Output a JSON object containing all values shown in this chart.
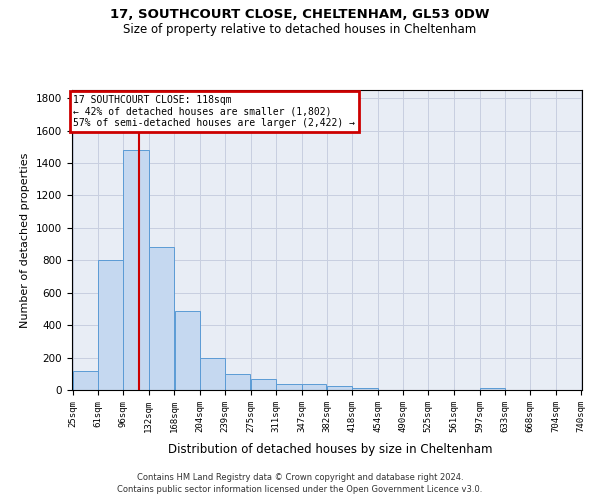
{
  "title1": "17, SOUTHCOURT CLOSE, CHELTENHAM, GL53 0DW",
  "title2": "Size of property relative to detached houses in Cheltenham",
  "xlabel": "Distribution of detached houses by size in Cheltenham",
  "ylabel": "Number of detached properties",
  "footer1": "Contains HM Land Registry data © Crown copyright and database right 2024.",
  "footer2": "Contains public sector information licensed under the Open Government Licence v3.0.",
  "bar_left_edges": [
    25,
    61,
    96,
    132,
    168,
    204,
    239,
    275,
    311,
    347,
    382,
    418,
    454,
    490,
    525,
    561,
    597,
    633,
    668,
    704
  ],
  "bar_widths": [
    36,
    35,
    36,
    36,
    36,
    35,
    36,
    36,
    36,
    35,
    36,
    36,
    36,
    35,
    36,
    36,
    36,
    35,
    36,
    36
  ],
  "bar_heights": [
    120,
    800,
    1480,
    880,
    490,
    200,
    100,
    65,
    40,
    35,
    25,
    15,
    0,
    0,
    0,
    0,
    15,
    0,
    0,
    0
  ],
  "tick_labels": [
    "25sqm",
    "61sqm",
    "96sqm",
    "132sqm",
    "168sqm",
    "204sqm",
    "239sqm",
    "275sqm",
    "311sqm",
    "347sqm",
    "382sqm",
    "418sqm",
    "454sqm",
    "490sqm",
    "525sqm",
    "561sqm",
    "597sqm",
    "633sqm",
    "668sqm",
    "704sqm",
    "740sqm"
  ],
  "bar_color": "#c5d8f0",
  "bar_edge_color": "#5b9bd5",
  "grid_color": "#c8cfe0",
  "background_color": "#e8edf5",
  "vline_color": "#cc0000",
  "vline_x": 118,
  "annotation_line1": "17 SOUTHCOURT CLOSE: 118sqm",
  "annotation_line2": "← 42% of detached houses are smaller (1,802)",
  "annotation_line3": "57% of semi-detached houses are larger (2,422) →",
  "annotation_box_color": "#cc0000",
  "ylim": [
    0,
    1850
  ],
  "yticks": [
    0,
    200,
    400,
    600,
    800,
    1000,
    1200,
    1400,
    1600,
    1800
  ]
}
